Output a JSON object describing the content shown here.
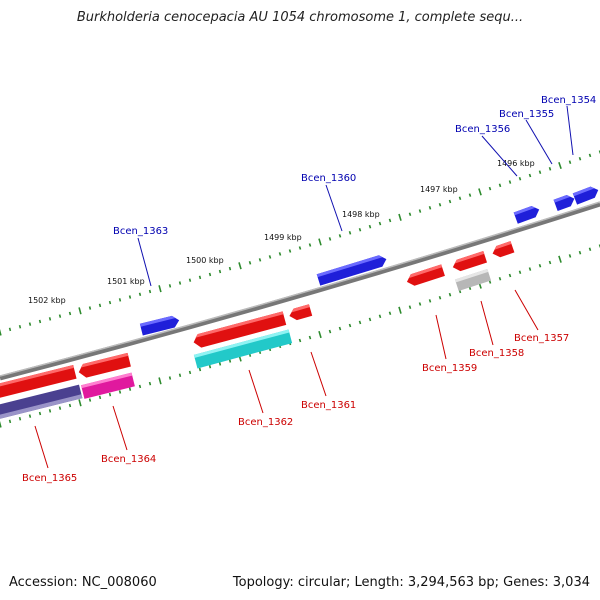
{
  "title": "Burkholderia cenocepacia AU 1054 chromosome 1, complete sequ...",
  "footer": {
    "accession": "Accession: NC_008060",
    "topology": "Topology: circular; Length: 3,294,563 bp; Genes: 3,034"
  },
  "colors": {
    "forward_gene": "#1f1fd9",
    "reverse_gene": "#e01010",
    "reverse_gene_cyan": "#22c9c9",
    "reverse_gene_magenta": "#e0199e",
    "reverse_gene_grey": "#b7b7b7",
    "reverse_gene_purple": "#4a4090",
    "backbone": "#888888",
    "tick": "#2e8b2e",
    "forward_label": "#0000b0",
    "reverse_label": "#cc0000"
  },
  "scale_labels": [
    "1502 kbp",
    "1501 kbp",
    "1500 kbp",
    "1499 kbp",
    "1498 kbp",
    "1497 kbp",
    "1496 kbp"
  ],
  "genes_forward": [
    "Bcen_1363",
    "Bcen_1360",
    "Bcen_1356",
    "Bcen_1355",
    "Bcen_1354"
  ],
  "genes_reverse": [
    "Bcen_1365",
    "Bcen_1364",
    "Bcen_1362",
    "Bcen_1361",
    "Bcen_1359",
    "Bcen_1358",
    "Bcen_1357"
  ]
}
